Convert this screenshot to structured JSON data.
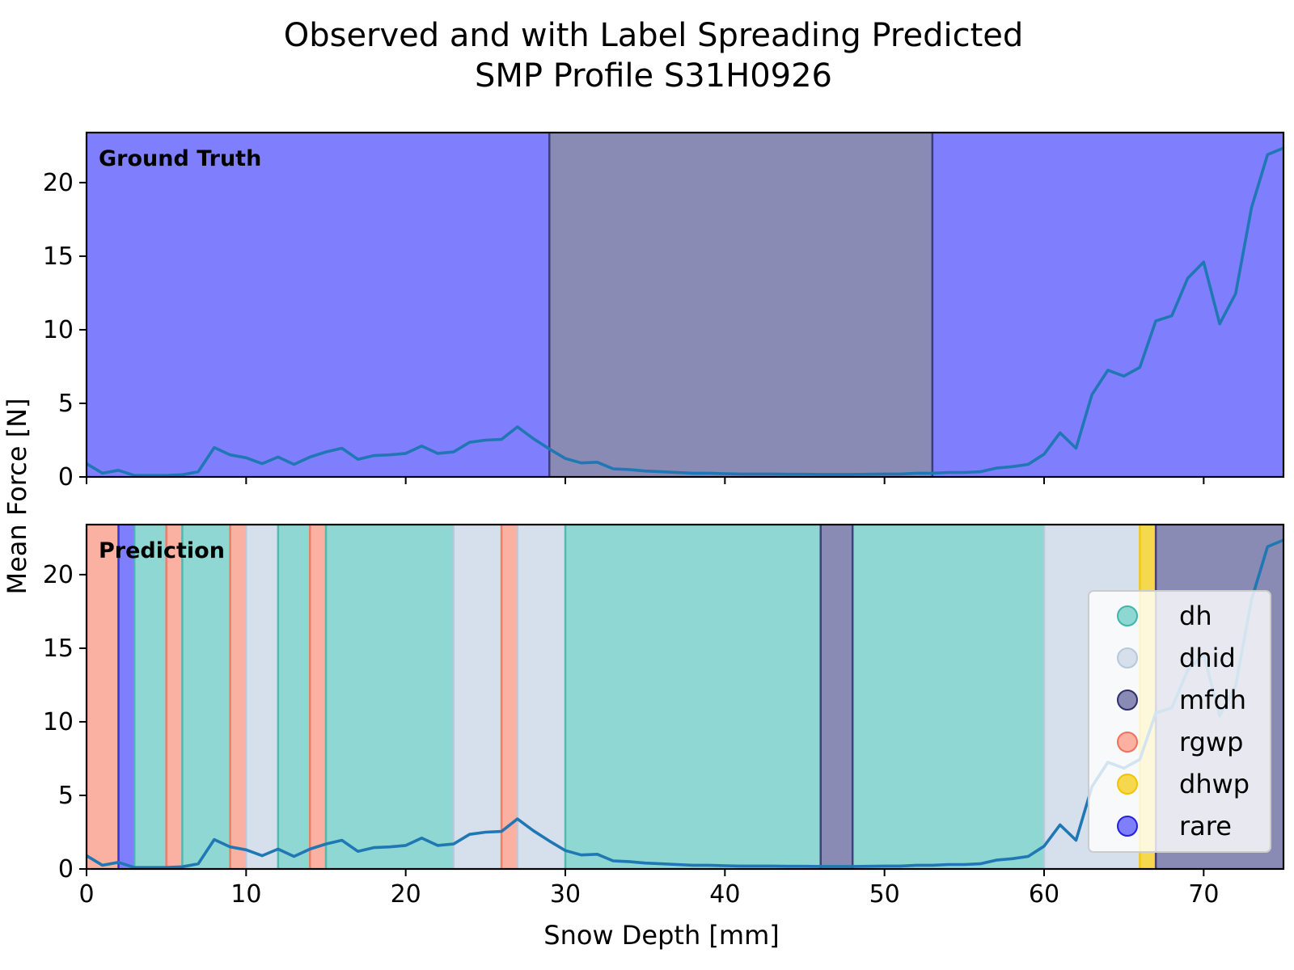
{
  "chart_data": {
    "type": "line",
    "title": "Observed and with Label Spreading Predicted",
    "subtitle": "SMP Profile S31H0926",
    "xlabel": "Snow Depth [mm]",
    "ylabel": "Mean Force [N]",
    "xlim": [
      0,
      75
    ],
    "ylim": [
      0,
      23.4
    ],
    "xticks": [
      0,
      10,
      20,
      30,
      40,
      50,
      60,
      70
    ],
    "yticks": [
      0,
      5,
      10,
      15,
      20
    ],
    "grid": false,
    "legend_position": "lower-right",
    "colors": {
      "line": "#1f77b4",
      "dh": "#8fd7d2",
      "dhid": "#d6e0ec",
      "mfdh": "#8a8bb5",
      "rgwp": "#fbb1a1",
      "dhwp": "#f6d84e",
      "rare": "#7f7ffe"
    },
    "legend": [
      {
        "label": "dh",
        "color": "#8fd7d2",
        "edge": "#3fb5ab"
      },
      {
        "label": "dhid",
        "color": "#d6e0ec",
        "edge": "#b7c8dc"
      },
      {
        "label": "mfdh",
        "color": "#8a8bb5",
        "edge": "#2d2f6e"
      },
      {
        "label": "rgwp",
        "color": "#fbb1a1",
        "edge": "#f2715a"
      },
      {
        "label": "dhwp",
        "color": "#f6d84e",
        "edge": "#f1c400"
      },
      {
        "label": "rare",
        "color": "#7f7ffe",
        "edge": "#2222dd"
      }
    ],
    "series": [
      {
        "x": [
          0,
          1,
          2,
          3,
          4,
          5,
          6,
          7,
          8,
          9,
          10,
          11,
          12,
          13,
          14,
          15,
          16,
          17,
          18,
          19,
          20,
          21,
          22,
          23,
          24,
          25,
          26,
          27,
          28,
          29,
          30,
          31,
          32,
          33,
          34,
          35,
          36,
          37,
          38,
          39,
          40,
          41,
          42,
          43,
          44,
          45,
          46,
          47,
          48,
          49,
          50,
          51,
          52,
          53,
          54,
          55,
          56,
          57,
          58,
          59,
          60,
          61,
          62,
          63,
          64,
          65,
          66,
          67,
          68,
          69,
          70,
          71,
          72,
          73,
          74,
          75
        ],
        "values": [
          0.9,
          0.25,
          0.45,
          0.1,
          0.1,
          0.1,
          0.15,
          0.35,
          2.0,
          1.5,
          1.3,
          0.9,
          1.35,
          0.85,
          1.35,
          1.7,
          1.95,
          1.2,
          1.45,
          1.5,
          1.6,
          2.1,
          1.6,
          1.7,
          2.35,
          2.5,
          2.55,
          3.4,
          2.6,
          1.9,
          1.25,
          0.95,
          1.0,
          0.55,
          0.5,
          0.4,
          0.35,
          0.3,
          0.25,
          0.25,
          0.22,
          0.2,
          0.2,
          0.2,
          0.18,
          0.18,
          0.17,
          0.17,
          0.17,
          0.18,
          0.2,
          0.2,
          0.25,
          0.25,
          0.3,
          0.3,
          0.35,
          0.6,
          0.7,
          0.85,
          1.55,
          3.0,
          1.95,
          5.6,
          7.25,
          6.85,
          7.45,
          10.6,
          10.95,
          13.5,
          14.6,
          10.4,
          12.45,
          18.3,
          21.9,
          22.35
        ]
      }
    ],
    "panels": [
      {
        "label": "Ground Truth",
        "segments": [
          {
            "start": 0,
            "end": 29,
            "class": "rare"
          },
          {
            "start": 29,
            "end": 53,
            "class": "mfdh"
          },
          {
            "start": 53,
            "end": 75,
            "class": "rare"
          }
        ]
      },
      {
        "label": "Prediction",
        "segments": [
          {
            "start": 0,
            "end": 2,
            "class": "rgwp"
          },
          {
            "start": 2,
            "end": 3,
            "class": "rare"
          },
          {
            "start": 3,
            "end": 5,
            "class": "dh"
          },
          {
            "start": 5,
            "end": 6,
            "class": "rgwp"
          },
          {
            "start": 6,
            "end": 9,
            "class": "dh"
          },
          {
            "start": 9,
            "end": 10,
            "class": "rgwp"
          },
          {
            "start": 10,
            "end": 12,
            "class": "dhid"
          },
          {
            "start": 12,
            "end": 14,
            "class": "dh"
          },
          {
            "start": 14,
            "end": 15,
            "class": "rgwp"
          },
          {
            "start": 15,
            "end": 23,
            "class": "dh"
          },
          {
            "start": 23,
            "end": 26,
            "class": "dhid"
          },
          {
            "start": 26,
            "end": 27,
            "class": "rgwp"
          },
          {
            "start": 27,
            "end": 30,
            "class": "dhid"
          },
          {
            "start": 30,
            "end": 46,
            "class": "dh"
          },
          {
            "start": 46,
            "end": 48,
            "class": "mfdh"
          },
          {
            "start": 48,
            "end": 60,
            "class": "dh"
          },
          {
            "start": 60,
            "end": 66,
            "class": "dhid"
          },
          {
            "start": 66,
            "end": 67,
            "class": "dhwp"
          },
          {
            "start": 67,
            "end": 75,
            "class": "mfdh"
          }
        ]
      }
    ]
  }
}
